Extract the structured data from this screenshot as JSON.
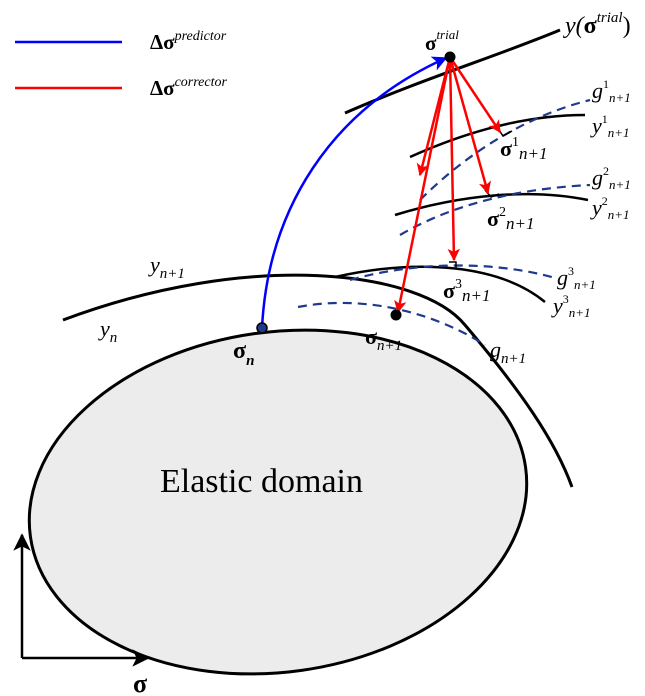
{
  "legend": {
    "predictor": {
      "base": "Δσ",
      "sup": "predictor",
      "color": "#0000ff"
    },
    "corrector": {
      "base": "Δσ",
      "sup": "corrector",
      "color": "#ff0000"
    }
  },
  "domain_label": "Elastic domain",
  "axis_label": "σ",
  "trial": {
    "base": "σ",
    "sup": "trial"
  },
  "yield_trial": {
    "pre": "y(",
    "base": "σ",
    "sup": "trial",
    "post": ")"
  },
  "y_n": {
    "base": "y",
    "sub": "n"
  },
  "y_n1": {
    "base": "y",
    "sub": "n+1"
  },
  "sigma_n": {
    "base": "σ",
    "sub": "n"
  },
  "sigma_n1": {
    "base": "σ",
    "sub": "n+1"
  },
  "g_n1": {
    "base": "g",
    "sub": "n+1"
  },
  "iterations": [
    {
      "sigma": "σ",
      "sup": "1",
      "sub": "n+1",
      "g": "g",
      "y": "y"
    },
    {
      "sigma": "σ",
      "sup": "2",
      "sub": "n+1",
      "g": "g",
      "y": "y"
    },
    {
      "sigma": "σ",
      "sup": "3",
      "sub": "n+1",
      "g": "g",
      "y": "y"
    }
  ],
  "colors": {
    "ellipse_fill": "#ececec",
    "dashed": "#1f3a8a",
    "predictor": "#0000ff",
    "corrector": "#ff0000"
  }
}
